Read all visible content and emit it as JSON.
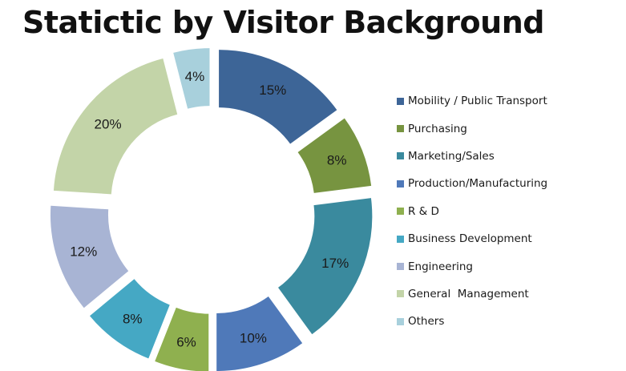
{
  "chart_data": {
    "type": "pie",
    "title": "Statictic by Visitor Background",
    "categories": [
      "Mobility / Public Transport",
      "Purchasing",
      "Marketing/Sales",
      "Production/Manufacturing",
      "R & D",
      "Business Development",
      "Engineering",
      "General  Management",
      "Others"
    ],
    "values": [
      15,
      8,
      17,
      10,
      6,
      8,
      12,
      20,
      4
    ],
    "labels": [
      "15%",
      "8%",
      "17%",
      "10%",
      "6%",
      "8%",
      "12%",
      "20%",
      "4%"
    ],
    "colors": [
      "#3d6597",
      "#779440",
      "#3a8a9e",
      "#4f79b9",
      "#8fb04f",
      "#45a8c4",
      "#a8b4d4",
      "#c3d4a8",
      "#a8d0dc"
    ],
    "unit": "%",
    "style": "donut",
    "legend_position": "right"
  }
}
